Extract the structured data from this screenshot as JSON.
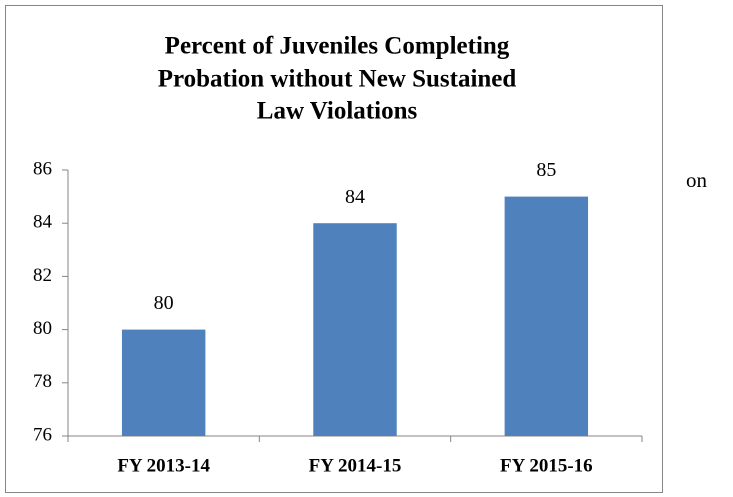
{
  "chart_data": {
    "type": "bar",
    "title": [
      "Percent of Juveniles Completing",
      "Probation without New Sustained",
      "Law Violations"
    ],
    "categories": [
      "FY 2013-14",
      "FY 2014-15",
      "FY 2015-16"
    ],
    "values": [
      80,
      84,
      85
    ],
    "color": "#4f81bd",
    "ylim": [
      76,
      86
    ],
    "yticks": [
      76,
      78,
      80,
      82,
      84,
      86
    ],
    "grid": false
  },
  "side_text": "on"
}
